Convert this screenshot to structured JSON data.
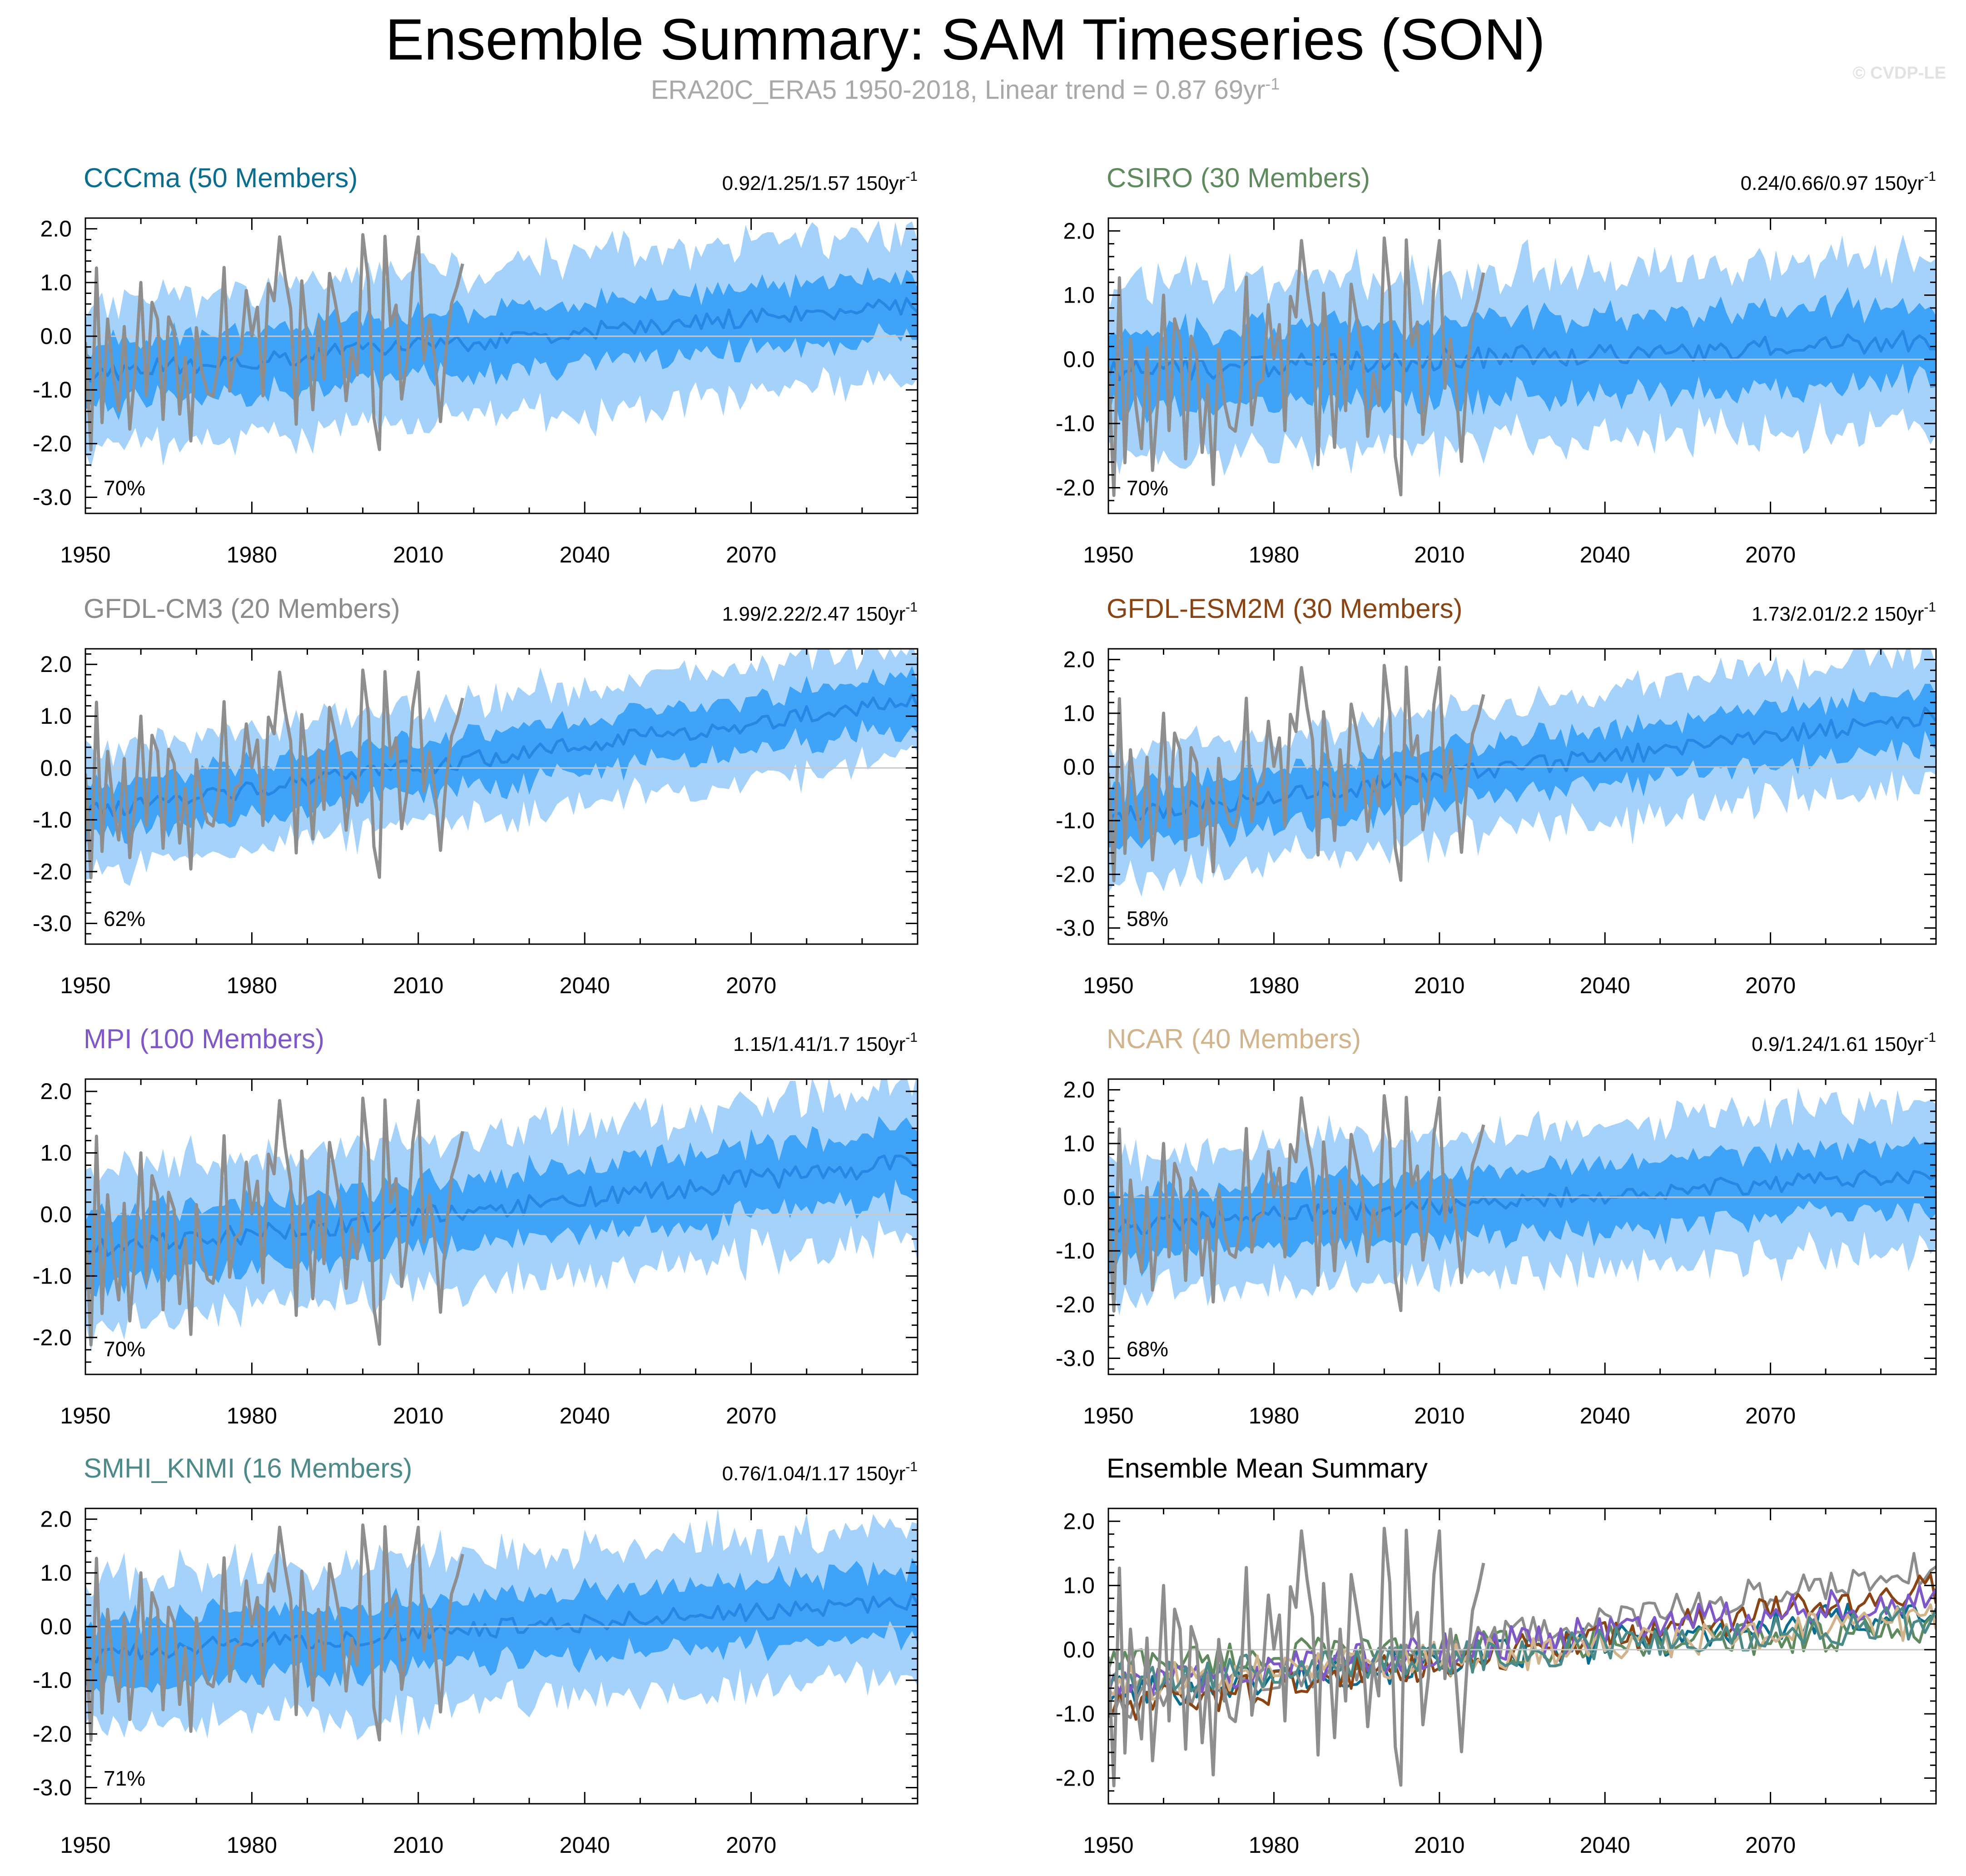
{
  "title": "Ensemble Summary: SAM Timeseries (SON)",
  "subtitle": {
    "text": "ERA20C_ERA5 1950-2018, Linear trend = 0.87 69yr",
    "superscript": "-1"
  },
  "watermark": "© CVDP-LE",
  "colors": {
    "outer_band": "#a4d2fb",
    "inner_band": "#3fa3f8",
    "ensemble_mean": "#2687e4",
    "observations": "#8e8e8e",
    "zero_line": "#c7c7c7"
  },
  "observations": {
    "name": "ERA20C_ERA5",
    "years": [
      1950,
      2018
    ],
    "values": [
      -0.11,
      -2.12,
      1.27,
      -1.61,
      0.32,
      -0.73,
      -1.39,
      0.18,
      -1.73,
      -0.6,
      1.0,
      -1.11,
      0.63,
      0.32,
      -1.55,
      0.36,
      0.08,
      -1.45,
      -0.39,
      -1.95,
      0.16,
      -0.66,
      -1.05,
      -1.12,
      -0.51,
      1.28,
      -1.02,
      -0.38,
      -0.31,
      0.85,
      0.01,
      0.54,
      -1.11,
      0.98,
      0.66,
      1.85,
      1.1,
      0.51,
      -1.64,
      1.03,
      -0.06,
      -1.37,
      0.32,
      -0.8,
      1.17,
      0.65,
      0.08,
      -1.2,
      -0.22,
      -0.72,
      1.89,
      1.04,
      -1.51,
      -2.11,
      1.86,
      0.2,
      0.58,
      -1.17,
      -0.43,
      1.17,
      1.85,
      -0.45,
      0.32,
      -0.43,
      -1.59,
      -0.25,
      0.61,
      0.93,
      1.35
    ]
  },
  "chart_data": [
    {
      "type": "line",
      "title": "CCCma (50 Members)",
      "title_color": "#086d8f",
      "trend_label": "0.92/1.25/1.57 150yr",
      "trend_superscript": "-1",
      "percent_label": "70%",
      "x_range": [
        1950,
        2100
      ],
      "xticks": [
        "1950",
        "1980",
        "2010",
        "2040",
        "2070"
      ],
      "ylim": [
        -3.3,
        2.2
      ],
      "yticks": [
        "2.0",
        "1.0",
        "0.0",
        "-1.0",
        "-2.0",
        "-3.0"
      ],
      "mean_start": -0.7,
      "mean_end": 0.61,
      "inner_halfwidth": 0.55,
      "outer_halfwidth": 1.35
    },
    {
      "type": "line",
      "title": "CSIRO (30 Members)",
      "title_color": "#5e8a5e",
      "trend_label": "0.24/0.66/0.97 150yr",
      "trend_superscript": "-1",
      "percent_label": "70%",
      "x_range": [
        1950,
        2100
      ],
      "xticks": [
        "1950",
        "1980",
        "2010",
        "2040",
        "2070"
      ],
      "ylim": [
        -2.4,
        2.2
      ],
      "yticks": [
        "2.0",
        "1.0",
        "0.0",
        "-1.0",
        "-2.0"
      ],
      "mean_start": -0.2,
      "mean_end": 0.3,
      "inner_halfwidth": 0.6,
      "outer_halfwidth": 1.3
    },
    {
      "type": "line",
      "title": "GFDL-CM3 (20 Members)",
      "title_color": "#8c8c8c",
      "trend_label": "1.99/2.22/2.47 150yr",
      "trend_superscript": "-1",
      "percent_label": "62%",
      "x_range": [
        1950,
        2100
      ],
      "xticks": [
        "1950",
        "1980",
        "2010",
        "2040",
        "2070"
      ],
      "ylim": [
        -3.4,
        2.3
      ],
      "yticks": [
        "2.0",
        "1.0",
        "0.0",
        "-1.0",
        "-2.0",
        "-3.0"
      ],
      "mean_start": -0.85,
      "mean_end": 1.3,
      "inner_halfwidth": 0.5,
      "outer_halfwidth": 1.1
    },
    {
      "type": "line",
      "title": "GFDL-ESM2M (30 Members)",
      "title_color": "#8a4414",
      "trend_label": "1.73/2.01/2.2 150yr",
      "trend_superscript": "-1",
      "percent_label": "58%",
      "x_range": [
        1950,
        2100
      ],
      "xticks": [
        "1950",
        "1980",
        "2010",
        "2040",
        "2070"
      ],
      "ylim": [
        -3.3,
        2.2
      ],
      "yticks": [
        "2.0",
        "1.0",
        "0.0",
        "-1.0",
        "-2.0",
        "-3.0"
      ],
      "mean_start": -0.95,
      "mean_end": 0.95,
      "inner_halfwidth": 0.5,
      "outer_halfwidth": 1.15
    },
    {
      "type": "line",
      "title": "MPI (100 Members)",
      "title_color": "#7e57c8",
      "trend_label": "1.15/1.41/1.7 150yr",
      "trend_superscript": "-1",
      "percent_label": "70%",
      "x_range": [
        1950,
        2100
      ],
      "xticks": [
        "1950",
        "1980",
        "2010",
        "2040",
        "2070"
      ],
      "ylim": [
        -2.6,
        2.2
      ],
      "yticks": [
        "2.0",
        "1.0",
        "0.0",
        "-1.0",
        "-2.0"
      ],
      "mean_start": -0.6,
      "mean_end": 0.85,
      "inner_halfwidth": 0.55,
      "outer_halfwidth": 1.2
    },
    {
      "type": "line",
      "title": "NCAR (40 Members)",
      "title_color": "#d2b48c",
      "trend_label": "0.9/1.24/1.61 150yr",
      "trend_superscript": "-1",
      "percent_label": "68%",
      "x_range": [
        1950,
        2100
      ],
      "xticks": [
        "1950",
        "1980",
        "2010",
        "2040",
        "2070"
      ],
      "ylim": [
        -3.3,
        2.2
      ],
      "yticks": [
        "2.0",
        "1.0",
        "0.0",
        "-1.0",
        "-2.0",
        "-3.0"
      ],
      "mean_start": -0.55,
      "mean_end": 0.45,
      "inner_halfwidth": 0.6,
      "outer_halfwidth": 1.3
    },
    {
      "type": "line",
      "title": "SMHI_KNMI (16 Members)",
      "title_color": "#4c8a8a",
      "trend_label": "0.76/1.04/1.17 150yr",
      "trend_superscript": "-1",
      "percent_label": "71%",
      "x_range": [
        1950,
        2100
      ],
      "xticks": [
        "1950",
        "1980",
        "2010",
        "2040",
        "2070"
      ],
      "ylim": [
        -3.3,
        2.2
      ],
      "yticks": [
        "2.0",
        "1.0",
        "0.0",
        "-1.0",
        "-2.0",
        "-3.0"
      ],
      "mean_start": -0.5,
      "mean_end": 0.45,
      "inner_halfwidth": 0.6,
      "outer_halfwidth": 1.35
    },
    {
      "type": "line",
      "title": "Ensemble Mean Summary",
      "title_color": "#000000",
      "x_range": [
        1950,
        2100
      ],
      "xticks": [
        "1950",
        "1980",
        "2010",
        "2040",
        "2070"
      ],
      "ylim": [
        -2.4,
        2.2
      ],
      "yticks": [
        "2.0",
        "1.0",
        "0.0",
        "-1.0",
        "-2.0"
      ],
      "series": [
        {
          "name": "CCCma",
          "color": "#086d8f",
          "start": -0.7,
          "end": 0.61
        },
        {
          "name": "CSIRO",
          "color": "#5e8a5e",
          "start": -0.2,
          "end": 0.3
        },
        {
          "name": "GFDL-CM3",
          "color": "#8c8c8c",
          "start": -0.85,
          "end": 1.3
        },
        {
          "name": "GFDL-ESM2M",
          "color": "#8a4414",
          "start": -0.95,
          "end": 0.95
        },
        {
          "name": "MPI",
          "color": "#7e57c8",
          "start": -0.6,
          "end": 0.85
        },
        {
          "name": "NCAR",
          "color": "#d2b48c",
          "start": -0.55,
          "end": 0.45
        },
        {
          "name": "SMHI_KNMI",
          "color": "#4c8a8a",
          "start": -0.5,
          "end": 0.45
        }
      ]
    }
  ]
}
